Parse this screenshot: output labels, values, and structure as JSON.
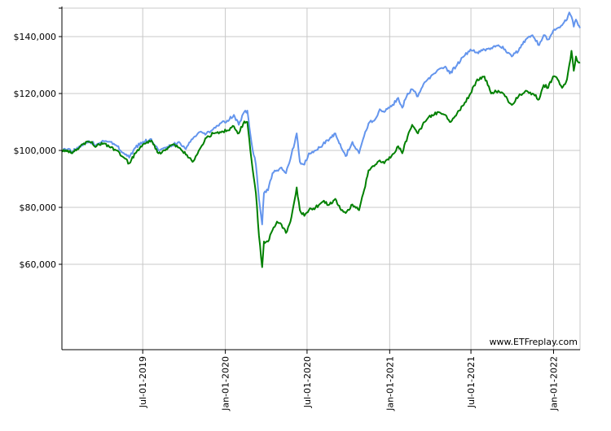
{
  "chart_data": {
    "type": "line",
    "title": "",
    "xlabel": "",
    "ylabel": "",
    "ylim": [
      30000,
      150000
    ],
    "grid": true,
    "legend": "none",
    "y_ticks": [
      {
        "value": 60000,
        "label": "$60,000"
      },
      {
        "value": 80000,
        "label": "$80,000"
      },
      {
        "value": 100000,
        "label": "$100,000"
      },
      {
        "value": 120000,
        "label": "$120,000"
      },
      {
        "value": 140000,
        "label": "$140,000"
      }
    ],
    "x_ticks": [
      {
        "date": "2019-07-01",
        "label": "Jul-01-2019"
      },
      {
        "date": "2020-01-01",
        "label": "Jan-01-2020"
      },
      {
        "date": "2020-07-01",
        "label": "Jul-01-2020"
      },
      {
        "date": "2021-01-01",
        "label": "Jan-01-2021"
      },
      {
        "date": "2021-07-01",
        "label": "Jul-01-2021"
      },
      {
        "date": "2022-01-01",
        "label": "Jan-01-2022"
      }
    ],
    "x_range": [
      "2019-01-02",
      "2022-03-01"
    ],
    "watermark": "www.ETFreplay.com",
    "series": [
      {
        "color": "#6495ed",
        "points": [
          [
            "2019-01-02",
            100000
          ],
          [
            "2019-01-15",
            100500
          ],
          [
            "2019-01-25",
            99500
          ],
          [
            "2019-02-05",
            101000
          ],
          [
            "2019-02-20",
            102500
          ],
          [
            "2019-03-05",
            103000
          ],
          [
            "2019-03-20",
            102000
          ],
          [
            "2019-04-05",
            103200
          ],
          [
            "2019-04-20",
            103000
          ],
          [
            "2019-05-05",
            101500
          ],
          [
            "2019-05-20",
            99000
          ],
          [
            "2019-06-01",
            97500
          ],
          [
            "2019-06-15",
            101000
          ],
          [
            "2019-07-01",
            103000
          ],
          [
            "2019-07-20",
            104000
          ],
          [
            "2019-08-05",
            100000
          ],
          [
            "2019-08-20",
            101000
          ],
          [
            "2019-09-05",
            102000
          ],
          [
            "2019-09-20",
            103000
          ],
          [
            "2019-10-05",
            100500
          ],
          [
            "2019-10-20",
            104000
          ],
          [
            "2019-11-05",
            106500
          ],
          [
            "2019-11-20",
            106000
          ],
          [
            "2019-12-05",
            107500
          ],
          [
            "2019-12-20",
            109500
          ],
          [
            "2020-01-05",
            110500
          ],
          [
            "2020-01-20",
            112500
          ],
          [
            "2020-01-31",
            109000
          ],
          [
            "2020-02-10",
            113000
          ],
          [
            "2020-02-19",
            114000
          ],
          [
            "2020-02-28",
            103000
          ],
          [
            "2020-03-09",
            95000
          ],
          [
            "2020-03-16",
            83000
          ],
          [
            "2020-03-23",
            74000
          ],
          [
            "2020-03-27",
            85000
          ],
          [
            "2020-04-05",
            86000
          ],
          [
            "2020-04-15",
            92000
          ],
          [
            "2020-04-25",
            93000
          ],
          [
            "2020-05-05",
            94000
          ],
          [
            "2020-05-15",
            92000
          ],
          [
            "2020-05-25",
            97000
          ],
          [
            "2020-06-08",
            106000
          ],
          [
            "2020-06-15",
            96000
          ],
          [
            "2020-06-25",
            95000
          ],
          [
            "2020-07-05",
            99000
          ],
          [
            "2020-07-20",
            100000
          ],
          [
            "2020-08-05",
            102000
          ],
          [
            "2020-08-20",
            104000
          ],
          [
            "2020-09-02",
            106000
          ],
          [
            "2020-09-15",
            101000
          ],
          [
            "2020-09-25",
            98000
          ],
          [
            "2020-10-10",
            103000
          ],
          [
            "2020-10-25",
            99000
          ],
          [
            "2020-11-05",
            105000
          ],
          [
            "2020-11-15",
            109500
          ],
          [
            "2020-11-30",
            111000
          ],
          [
            "2020-12-10",
            114500
          ],
          [
            "2020-12-20",
            113500
          ],
          [
            "2021-01-05",
            115500
          ],
          [
            "2021-01-20",
            118500
          ],
          [
            "2021-01-29",
            115000
          ],
          [
            "2021-02-10",
            120000
          ],
          [
            "2021-02-20",
            121500
          ],
          [
            "2021-03-05",
            119000
          ],
          [
            "2021-03-20",
            124000
          ],
          [
            "2021-04-05",
            126500
          ],
          [
            "2021-04-20",
            128500
          ],
          [
            "2021-05-05",
            129500
          ],
          [
            "2021-05-15",
            127000
          ],
          [
            "2021-05-31",
            130000
          ],
          [
            "2021-06-15",
            133000
          ],
          [
            "2021-06-30",
            135500
          ],
          [
            "2021-07-15",
            134500
          ],
          [
            "2021-07-31",
            135500
          ],
          [
            "2021-08-15",
            136000
          ],
          [
            "2021-08-31",
            137000
          ],
          [
            "2021-09-15",
            135500
          ],
          [
            "2021-09-30",
            133000
          ],
          [
            "2021-10-15",
            135000
          ],
          [
            "2021-10-31",
            139000
          ],
          [
            "2021-11-15",
            140500
          ],
          [
            "2021-11-30",
            137000
          ],
          [
            "2021-12-10",
            140500
          ],
          [
            "2021-12-20",
            139000
          ],
          [
            "2021-12-31",
            142000
          ],
          [
            "2022-01-10",
            143000
          ],
          [
            "2022-01-20",
            144000
          ],
          [
            "2022-01-31",
            146000
          ],
          [
            "2022-02-05",
            148500
          ],
          [
            "2022-02-10",
            147000
          ],
          [
            "2022-02-15",
            143500
          ],
          [
            "2022-02-20",
            146000
          ],
          [
            "2022-02-25",
            144000
          ],
          [
            "2022-03-01",
            143000
          ]
        ]
      },
      {
        "color": "#008000",
        "points": [
          [
            "2019-01-02",
            100000
          ],
          [
            "2019-01-15",
            100000
          ],
          [
            "2019-01-25",
            99000
          ],
          [
            "2019-02-05",
            100500
          ],
          [
            "2019-02-20",
            102500
          ],
          [
            "2019-03-05",
            103000
          ],
          [
            "2019-03-20",
            101500
          ],
          [
            "2019-04-05",
            102500
          ],
          [
            "2019-04-20",
            101000
          ],
          [
            "2019-05-05",
            100000
          ],
          [
            "2019-05-20",
            97500
          ],
          [
            "2019-06-01",
            95500
          ],
          [
            "2019-06-15",
            99000
          ],
          [
            "2019-07-01",
            102000
          ],
          [
            "2019-07-20",
            103500
          ],
          [
            "2019-08-05",
            99000
          ],
          [
            "2019-08-20",
            100000
          ],
          [
            "2019-09-05",
            102000
          ],
          [
            "2019-09-20",
            101000
          ],
          [
            "2019-10-05",
            98500
          ],
          [
            "2019-10-20",
            96000
          ],
          [
            "2019-11-05",
            100500
          ],
          [
            "2019-11-20",
            104500
          ],
          [
            "2019-12-05",
            106000
          ],
          [
            "2019-12-20",
            106500
          ],
          [
            "2020-01-05",
            107000
          ],
          [
            "2020-01-20",
            108500
          ],
          [
            "2020-01-31",
            106000
          ],
          [
            "2020-02-10",
            109500
          ],
          [
            "2020-02-19",
            110000
          ],
          [
            "2020-02-28",
            97000
          ],
          [
            "2020-03-09",
            85000
          ],
          [
            "2020-03-16",
            70000
          ],
          [
            "2020-03-23",
            59000
          ],
          [
            "2020-03-27",
            68000
          ],
          [
            "2020-04-05",
            68000
          ],
          [
            "2020-04-15",
            72000
          ],
          [
            "2020-04-25",
            75000
          ],
          [
            "2020-05-05",
            74000
          ],
          [
            "2020-05-15",
            71000
          ],
          [
            "2020-05-25",
            75000
          ],
          [
            "2020-06-08",
            87000
          ],
          [
            "2020-06-15",
            79000
          ],
          [
            "2020-06-25",
            77000
          ],
          [
            "2020-07-05",
            79000
          ],
          [
            "2020-07-20",
            80000
          ],
          [
            "2020-08-05",
            82000
          ],
          [
            "2020-08-20",
            81000
          ],
          [
            "2020-09-02",
            83000
          ],
          [
            "2020-09-15",
            79000
          ],
          [
            "2020-09-25",
            78000
          ],
          [
            "2020-10-10",
            81000
          ],
          [
            "2020-10-25",
            79000
          ],
          [
            "2020-11-05",
            86000
          ],
          [
            "2020-11-15",
            93000
          ],
          [
            "2020-11-30",
            95000
          ],
          [
            "2020-12-10",
            96500
          ],
          [
            "2020-12-20",
            95500
          ],
          [
            "2021-01-05",
            98000
          ],
          [
            "2021-01-20",
            101500
          ],
          [
            "2021-01-29",
            99000
          ],
          [
            "2021-02-10",
            105000
          ],
          [
            "2021-02-20",
            109000
          ],
          [
            "2021-03-05",
            106000
          ],
          [
            "2021-03-20",
            110000
          ],
          [
            "2021-04-05",
            112500
          ],
          [
            "2021-04-20",
            113500
          ],
          [
            "2021-05-05",
            112500
          ],
          [
            "2021-05-15",
            110000
          ],
          [
            "2021-05-31",
            113000
          ],
          [
            "2021-06-15",
            116000
          ],
          [
            "2021-06-30",
            120000
          ],
          [
            "2021-07-15",
            125000
          ],
          [
            "2021-07-31",
            126000
          ],
          [
            "2021-08-15",
            120000
          ],
          [
            "2021-08-31",
            121000
          ],
          [
            "2021-09-15",
            119000
          ],
          [
            "2021-09-30",
            116000
          ],
          [
            "2021-10-15",
            119000
          ],
          [
            "2021-10-31",
            121000
          ],
          [
            "2021-11-15",
            120000
          ],
          [
            "2021-11-30",
            118000
          ],
          [
            "2021-12-10",
            123000
          ],
          [
            "2021-12-20",
            122000
          ],
          [
            "2021-12-31",
            126000
          ],
          [
            "2022-01-10",
            125000
          ],
          [
            "2022-01-20",
            122000
          ],
          [
            "2022-01-31",
            125000
          ],
          [
            "2022-02-05",
            130000
          ],
          [
            "2022-02-10",
            135000
          ],
          [
            "2022-02-15",
            128000
          ],
          [
            "2022-02-20",
            133000
          ],
          [
            "2022-02-25",
            131000
          ],
          [
            "2022-03-01",
            131000
          ]
        ]
      }
    ]
  }
}
